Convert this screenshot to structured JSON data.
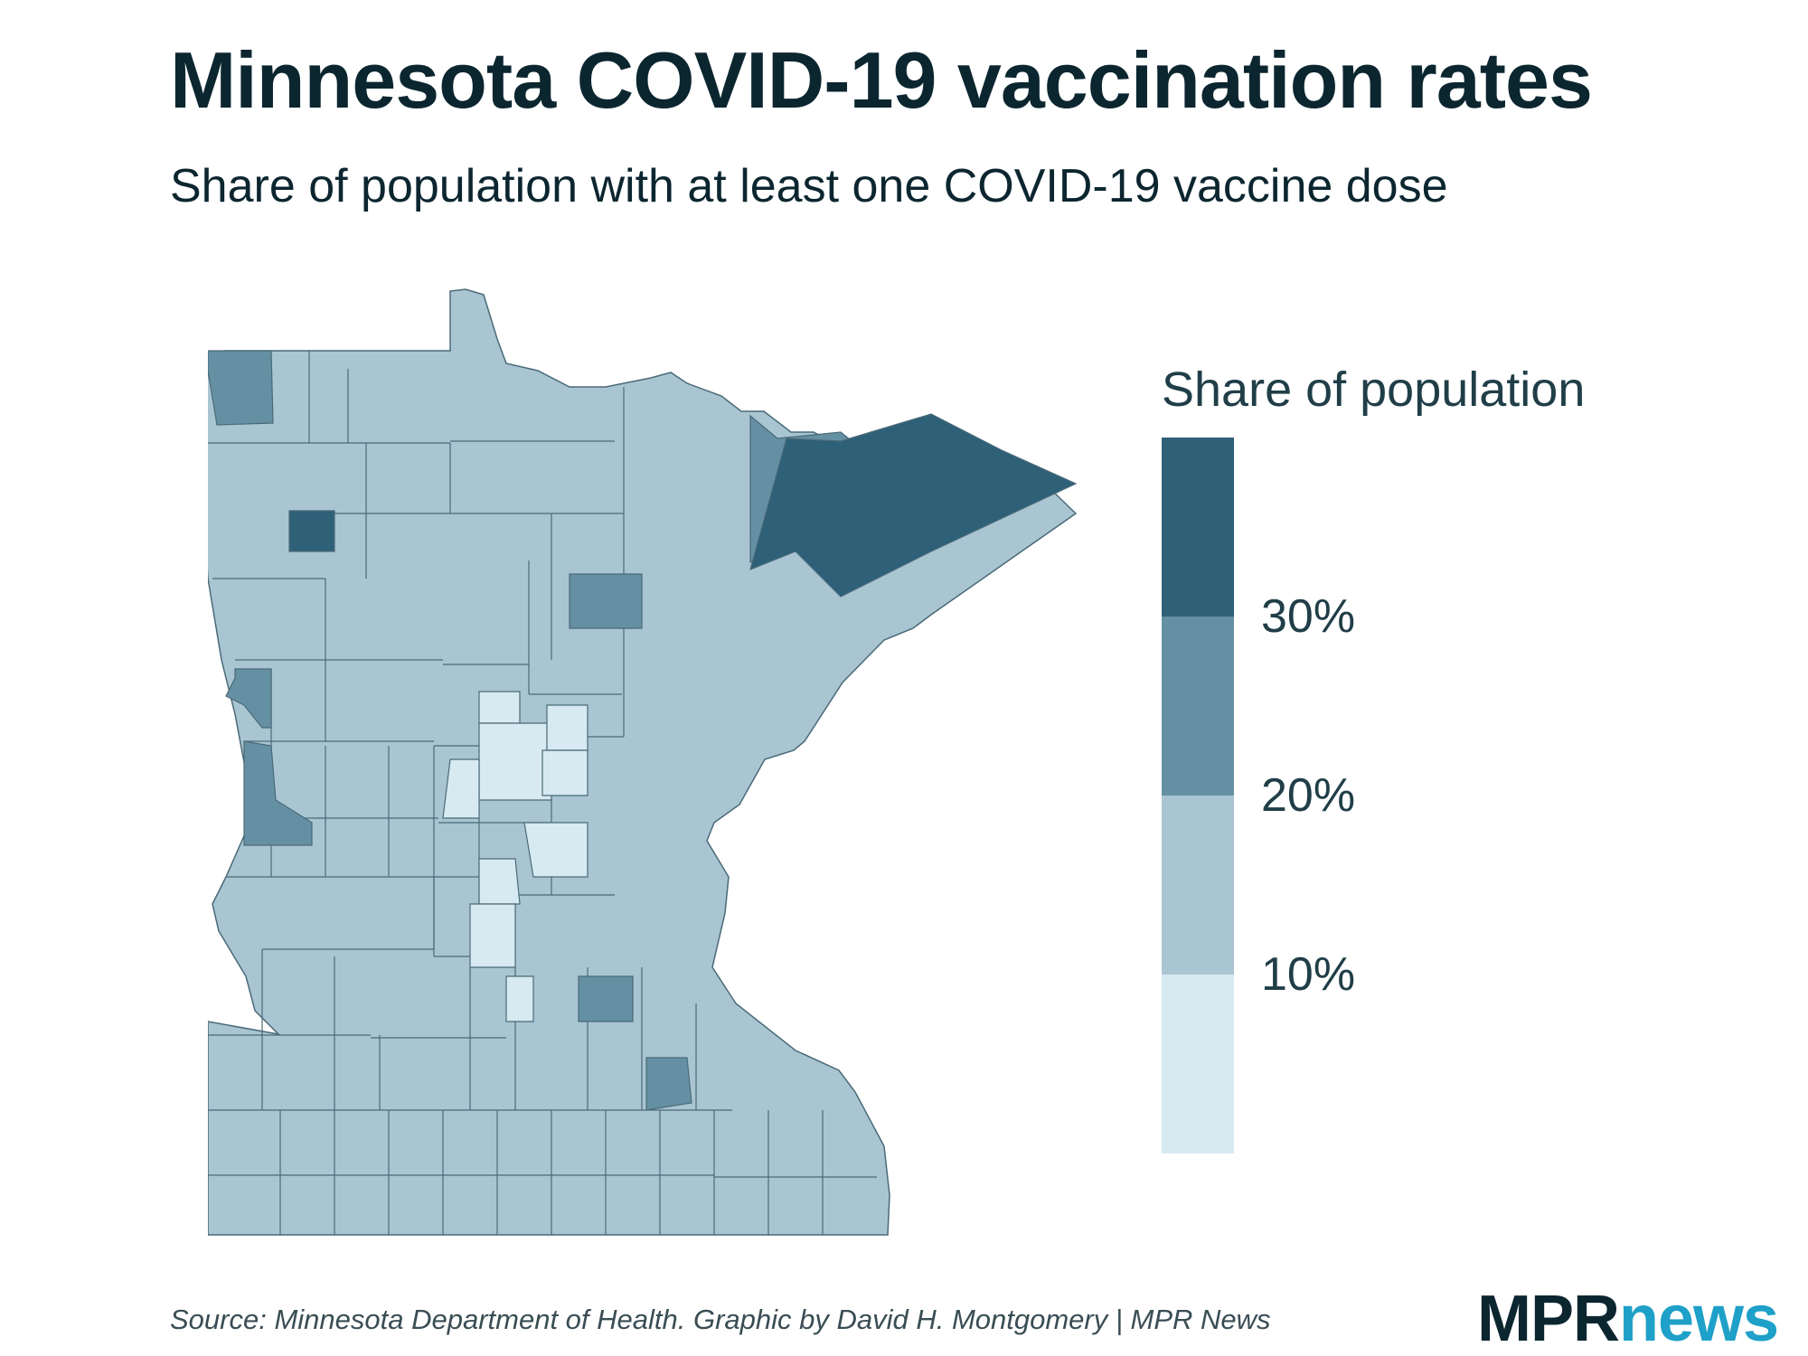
{
  "title": "Minnesota COVID-19 vaccination rates",
  "subtitle": "Share of population with at least one COVID-19 vaccine dose",
  "legend": {
    "title": "Share of population",
    "colors": [
      "#2e6078",
      "#6590a3",
      "#a9c5d1",
      "#d7eaf1"
    ],
    "ticks": [
      "30%",
      "20%",
      "10%"
    ]
  },
  "source": "Source: Minnesota Department of Health. Graphic by David H. Montgomery | MPR News",
  "logo": {
    "part1": "MPR",
    "part2": "news"
  },
  "map_colors": {
    "bin_lt10": "#d7eaf1",
    "bin_10_20": "#a9c5d1",
    "bin_20_30": "#6590a3",
    "bin_gt30": "#2e6078",
    "border": "#4a6a78"
  }
}
